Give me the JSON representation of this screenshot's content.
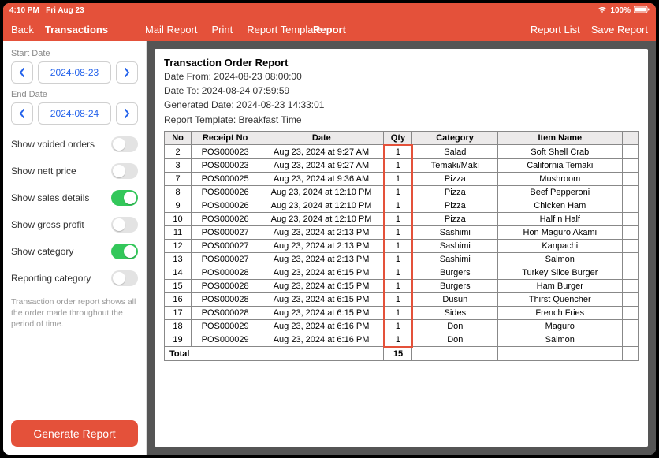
{
  "status": {
    "time": "4:10 PM",
    "date": "Fri Aug 23",
    "battery": "100%"
  },
  "toolbar": {
    "back": "Back",
    "screen": "Transactions",
    "mail": "Mail Report",
    "print": "Print",
    "template": "Report Template",
    "title": "Report",
    "list": "Report List",
    "save": "Save Report"
  },
  "sidebar": {
    "start_label": "Start Date",
    "start_value": "2024-08-23",
    "end_label": "End Date",
    "end_value": "2024-08-24",
    "toggles": [
      {
        "label": "Show voided orders",
        "on": false
      },
      {
        "label": "Show nett price",
        "on": false
      },
      {
        "label": "Show sales details",
        "on": true
      },
      {
        "label": "Show gross profit",
        "on": false
      },
      {
        "label": "Show category",
        "on": true
      },
      {
        "label": "Reporting category",
        "on": false
      }
    ],
    "description": "Transaction order report shows all the order made throughout the period of time.",
    "generate": "Generate Report"
  },
  "report": {
    "title": "Transaction Order Report",
    "from": "Date From: 2024-08-23 08:00:00",
    "to": "Date To: 2024-08-24 07:59:59",
    "generated": "Generated Date: 2024-08-23 14:33:01",
    "template": "Report Template: Breakfast Time",
    "headers": [
      "No",
      "Receipt No",
      "Date",
      "Qty",
      "Category",
      "Item Name"
    ],
    "rows": [
      {
        "no": "2",
        "rcpt": "POS000023",
        "date": "Aug 23, 2024 at 9:27 AM",
        "qty": "1",
        "cat": "Salad",
        "item": "Soft Shell Crab"
      },
      {
        "no": "3",
        "rcpt": "POS000023",
        "date": "Aug 23, 2024 at 9:27 AM",
        "qty": "1",
        "cat": "Temaki/Maki",
        "item": "California Temaki"
      },
      {
        "no": "7",
        "rcpt": "POS000025",
        "date": "Aug 23, 2024 at 9:36 AM",
        "qty": "1",
        "cat": "Pizza",
        "item": "Mushroom"
      },
      {
        "no": "8",
        "rcpt": "POS000026",
        "date": "Aug 23, 2024 at 12:10 PM",
        "qty": "1",
        "cat": "Pizza",
        "item": "Beef Pepperoni"
      },
      {
        "no": "9",
        "rcpt": "POS000026",
        "date": "Aug 23, 2024 at 12:10 PM",
        "qty": "1",
        "cat": "Pizza",
        "item": "Chicken Ham"
      },
      {
        "no": "10",
        "rcpt": "POS000026",
        "date": "Aug 23, 2024 at 12:10 PM",
        "qty": "1",
        "cat": "Pizza",
        "item": "Half n Half"
      },
      {
        "no": "11",
        "rcpt": "POS000027",
        "date": "Aug 23, 2024 at 2:13 PM",
        "qty": "1",
        "cat": "Sashimi",
        "item": "Hon Maguro Akami"
      },
      {
        "no": "12",
        "rcpt": "POS000027",
        "date": "Aug 23, 2024 at 2:13 PM",
        "qty": "1",
        "cat": "Sashimi",
        "item": "Kanpachi"
      },
      {
        "no": "13",
        "rcpt": "POS000027",
        "date": "Aug 23, 2024 at 2:13 PM",
        "qty": "1",
        "cat": "Sashimi",
        "item": "Salmon"
      },
      {
        "no": "14",
        "rcpt": "POS000028",
        "date": "Aug 23, 2024 at 6:15 PM",
        "qty": "1",
        "cat": "Burgers",
        "item": "Turkey Slice Burger"
      },
      {
        "no": "15",
        "rcpt": "POS000028",
        "date": "Aug 23, 2024 at 6:15 PM",
        "qty": "1",
        "cat": "Burgers",
        "item": "Ham Burger"
      },
      {
        "no": "16",
        "rcpt": "POS000028",
        "date": "Aug 23, 2024 at 6:15 PM",
        "qty": "1",
        "cat": "Dusun",
        "item": "Thirst Quencher"
      },
      {
        "no": "17",
        "rcpt": "POS000028",
        "date": "Aug 23, 2024 at 6:15 PM",
        "qty": "1",
        "cat": "Sides",
        "item": "French Fries"
      },
      {
        "no": "18",
        "rcpt": "POS000029",
        "date": "Aug 23, 2024 at 6:16 PM",
        "qty": "1",
        "cat": "Don",
        "item": "Maguro"
      },
      {
        "no": "19",
        "rcpt": "POS000029",
        "date": "Aug 23, 2024 at 6:16 PM",
        "qty": "1",
        "cat": "Don",
        "item": "Salmon"
      }
    ],
    "total_label": "Total",
    "total_qty": "15"
  },
  "colors": {
    "accent": "#e4513a",
    "link": "#2563eb",
    "toggle_on": "#33c75a"
  }
}
